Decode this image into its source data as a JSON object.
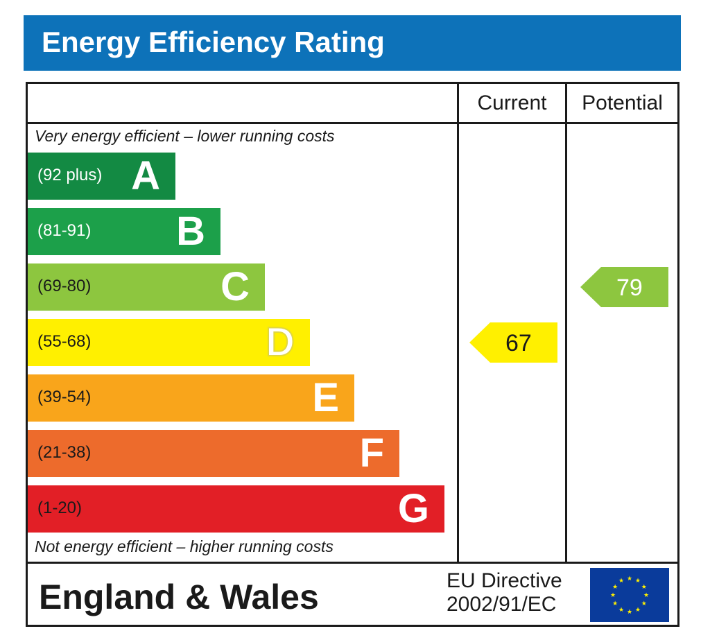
{
  "title": "Energy Efficiency Rating",
  "columns": {
    "current": "Current",
    "potential": "Potential"
  },
  "top_note": "Very energy efficient – lower running costs",
  "bottom_note": "Not energy efficient – higher running costs",
  "region": "England & Wales",
  "directive": {
    "line1": "EU Directive",
    "line2": "2002/91/EC"
  },
  "colors": {
    "header": "#0d72b9",
    "A": "#138a43",
    "B": "#1ca04a",
    "C": "#8dc63f",
    "D": "#fff000",
    "E": "#f9a51b",
    "F": "#ed6b2c",
    "G": "#e21f26",
    "eu_flag": "#0a3b9b",
    "eu_stars": "#fff000"
  },
  "chart_data": {
    "type": "bar",
    "categories": [
      "A",
      "B",
      "C",
      "D",
      "E",
      "F",
      "G"
    ],
    "bands": [
      {
        "letter": "A",
        "range": "(92 plus)",
        "min": 92,
        "max": 100
      },
      {
        "letter": "B",
        "range": "(81-91)",
        "min": 81,
        "max": 91
      },
      {
        "letter": "C",
        "range": "(69-80)",
        "min": 69,
        "max": 80
      },
      {
        "letter": "D",
        "range": "(55-68)",
        "min": 55,
        "max": 68
      },
      {
        "letter": "E",
        "range": "(39-54)",
        "min": 39,
        "max": 54
      },
      {
        "letter": "F",
        "range": "(21-38)",
        "min": 21,
        "max": 38
      },
      {
        "letter": "G",
        "range": "(1-20)",
        "min": 1,
        "max": 20
      }
    ],
    "current": {
      "value": 67,
      "band": "D",
      "label": "67"
    },
    "potential": {
      "value": 79,
      "band": "C",
      "label": "79"
    }
  }
}
